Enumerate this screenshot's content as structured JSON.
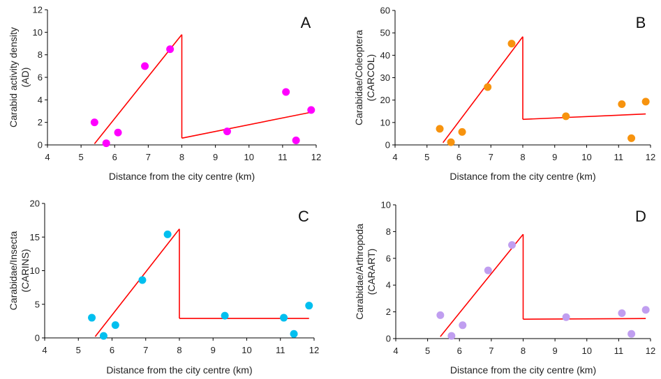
{
  "chart_data": [
    {
      "type": "scatter",
      "panel": "A",
      "ylabel_lines": [
        "Carabid activity density",
        "(AD)"
      ],
      "xlabel": "Distance from the city centre (km)",
      "xlim": [
        4,
        12
      ],
      "ylim": [
        0,
        12
      ],
      "xticks": [
        4,
        5,
        6,
        7,
        8,
        9,
        10,
        11,
        12
      ],
      "yticks": [
        0,
        2,
        4,
        6,
        8,
        10,
        12
      ],
      "point_color": "#ff00ff",
      "points": [
        [
          5.4,
          2.0
        ],
        [
          5.75,
          0.15
        ],
        [
          6.1,
          1.1
        ],
        [
          6.9,
          7.0
        ],
        [
          7.65,
          8.5
        ],
        [
          9.35,
          1.2
        ],
        [
          11.1,
          4.7
        ],
        [
          11.4,
          0.4
        ],
        [
          11.85,
          3.1
        ]
      ],
      "fit_segments": [
        [
          [
            5.4,
            0.1
          ],
          [
            8.0,
            9.8
          ]
        ],
        [
          [
            8.0,
            0.6
          ],
          [
            11.85,
            2.9
          ]
        ]
      ],
      "fit_color": "#ff0000"
    },
    {
      "type": "scatter",
      "panel": "B",
      "ylabel_lines": [
        "Carabidae/Coleoptera",
        "(CARCOL)"
      ],
      "xlabel": "Distance from the city centre (km)",
      "xlim": [
        4,
        12
      ],
      "ylim": [
        0,
        60
      ],
      "xticks": [
        4,
        5,
        6,
        7,
        8,
        9,
        10,
        11,
        12
      ],
      "yticks": [
        0,
        10,
        20,
        30,
        40,
        50,
        60
      ],
      "point_color": "#f7930e",
      "points": [
        [
          5.4,
          7.2
        ],
        [
          5.75,
          1.2
        ],
        [
          6.1,
          5.8
        ],
        [
          6.9,
          25.8
        ],
        [
          7.65,
          45.2
        ],
        [
          9.35,
          12.8
        ],
        [
          11.1,
          18.2
        ],
        [
          11.4,
          3.0
        ],
        [
          11.85,
          19.3
        ]
      ],
      "fit_segments": [
        [
          [
            5.5,
            1.0
          ],
          [
            8.0,
            48.3
          ]
        ],
        [
          [
            8.0,
            11.4
          ],
          [
            11.85,
            13.8
          ]
        ]
      ],
      "fit_color": "#ff0000"
    },
    {
      "type": "scatter",
      "panel": "C",
      "ylabel_lines": [
        "Carabidae/Insecta",
        "(CARINS)"
      ],
      "xlabel": "Distance from the city centre (km)",
      "xlim": [
        4,
        12
      ],
      "ylim": [
        0,
        20
      ],
      "xticks": [
        4,
        5,
        6,
        7,
        8,
        9,
        10,
        11,
        12
      ],
      "yticks": [
        0,
        5,
        10,
        15,
        20
      ],
      "point_color": "#00bfef",
      "points": [
        [
          5.4,
          3.0
        ],
        [
          5.75,
          0.3
        ],
        [
          6.1,
          1.9
        ],
        [
          6.9,
          8.6
        ],
        [
          7.65,
          15.4
        ],
        [
          9.35,
          3.3
        ],
        [
          11.1,
          3.0
        ],
        [
          11.4,
          0.6
        ],
        [
          11.85,
          4.8
        ]
      ],
      "fit_segments": [
        [
          [
            5.5,
            0.2
          ],
          [
            8.0,
            16.2
          ]
        ],
        [
          [
            8.0,
            2.9
          ],
          [
            11.85,
            2.9
          ]
        ]
      ],
      "fit_color": "#ff0000"
    },
    {
      "type": "scatter",
      "panel": "D",
      "ylabel_lines": [
        "Carabidae/Arthropoda",
        "(CARART)"
      ],
      "xlabel": "Distance from the city centre (km)",
      "xlim": [
        4,
        12
      ],
      "ylim": [
        0,
        10
      ],
      "xticks": [
        4,
        5,
        6,
        7,
        8,
        9,
        10,
        11,
        12
      ],
      "yticks": [
        0,
        2,
        4,
        6,
        8,
        10
      ],
      "point_color": "#c09ef0",
      "points": [
        [
          5.4,
          1.75
        ],
        [
          5.75,
          0.2
        ],
        [
          6.1,
          1.0
        ],
        [
          6.9,
          5.1
        ],
        [
          7.65,
          7.0
        ],
        [
          9.35,
          1.6
        ],
        [
          11.1,
          1.9
        ],
        [
          11.4,
          0.35
        ],
        [
          11.85,
          2.15
        ]
      ],
      "fit_segments": [
        [
          [
            5.4,
            0.15
          ],
          [
            8.0,
            7.8
          ]
        ],
        [
          [
            8.0,
            1.45
          ],
          [
            11.85,
            1.5
          ]
        ]
      ],
      "fit_color": "#ff0000"
    }
  ]
}
